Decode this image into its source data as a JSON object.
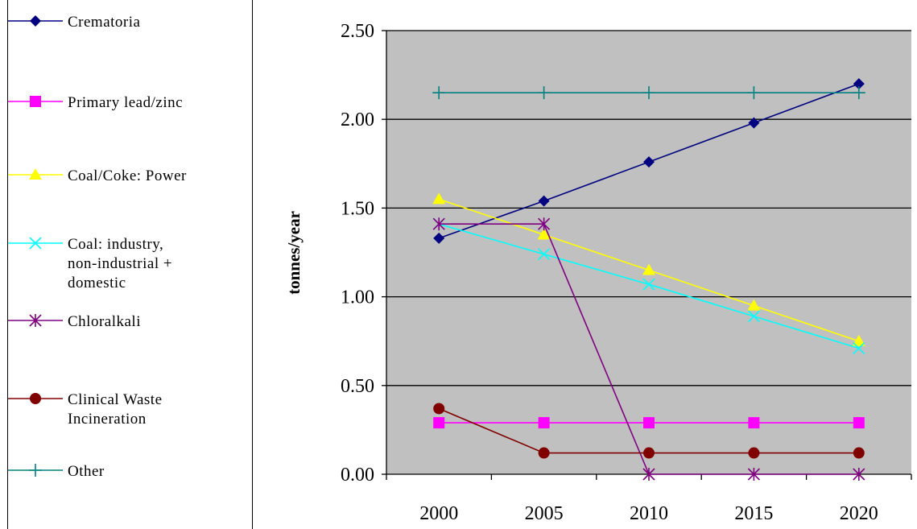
{
  "chart_data": {
    "type": "line",
    "title": "",
    "xlabel": "",
    "ylabel": "tonnes/year",
    "categories": [
      "2000",
      "2005",
      "2010",
      "2015",
      "2020"
    ],
    "ylim": [
      0,
      2.5
    ],
    "yticks": [
      "0.00",
      "0.50",
      "1.00",
      "1.50",
      "2.00",
      "2.50"
    ],
    "grid": "horizontal",
    "legend_position": "left",
    "plot_background": "#c0c0c0",
    "series": [
      {
        "name": [
          "Crematoria"
        ],
        "color": "#000080",
        "marker": "diamond",
        "values": [
          1.33,
          1.54,
          1.76,
          1.98,
          2.2
        ]
      },
      {
        "name": [
          "Primary lead/zinc"
        ],
        "color": "#ff00ff",
        "marker": "square",
        "values": [
          0.29,
          0.29,
          0.29,
          0.29,
          0.29
        ]
      },
      {
        "name": [
          "Coal/Coke: Power"
        ],
        "color": "#ffff00",
        "marker": "triangle",
        "values": [
          1.55,
          1.35,
          1.15,
          0.95,
          0.75
        ]
      },
      {
        "name": [
          "Coal: industry,",
          "non-industrial +",
          "domestic"
        ],
        "color": "#00ffff",
        "marker": "x",
        "values": [
          1.41,
          1.24,
          1.07,
          0.89,
          0.71
        ]
      },
      {
        "name": [
          "Chloralkali"
        ],
        "color": "#800080",
        "marker": "asterisk",
        "values": [
          1.41,
          1.41,
          0.0,
          0.0,
          0.0
        ]
      },
      {
        "name": [
          "Clinical Waste",
          "Incineration"
        ],
        "color": "#800000",
        "marker": "circle",
        "values": [
          0.37,
          0.12,
          0.12,
          0.12,
          0.12
        ]
      },
      {
        "name": [
          "Other"
        ],
        "color": "#008080",
        "marker": "plus",
        "values": [
          2.15,
          2.15,
          2.15,
          2.15,
          2.15
        ]
      }
    ]
  }
}
